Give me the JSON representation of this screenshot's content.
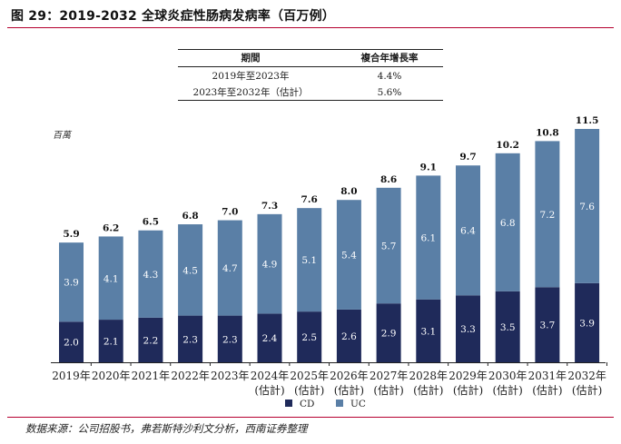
{
  "header": {
    "title": "图 29：2019-2032 全球炎症性肠病发病率（百万例）"
  },
  "cagr_table": {
    "headers": [
      "期間",
      "複合年增長率"
    ],
    "rows": [
      [
        "2019年至2023年",
        "4.4%"
      ],
      [
        "2023年至2032年（估計）",
        "5.6%"
      ]
    ]
  },
  "chart_data": {
    "type": "bar",
    "stacked": true,
    "title": "2019-2032 全球炎症性肠病发病率（百万例）",
    "ylabel": "百萬",
    "categories": [
      "2019年",
      "2020年",
      "2021年",
      "2022年",
      "2023年",
      "2024年\n(估計)",
      "2025年\n(估計)",
      "2026年\n(估計)",
      "2027年\n(估計)",
      "2028年\n(估計)",
      "2029年\n(估計)",
      "2030年\n(估計)",
      "2031年\n(估計)",
      "2032年\n(估計)"
    ],
    "series": [
      {
        "name": "CD",
        "color": "#1f2a5a",
        "values": [
          2.0,
          2.1,
          2.2,
          2.3,
          2.3,
          2.4,
          2.5,
          2.6,
          2.9,
          3.1,
          3.3,
          3.5,
          3.7,
          3.9
        ]
      },
      {
        "name": "UC",
        "color": "#5a7fa6",
        "values": [
          3.9,
          4.1,
          4.3,
          4.5,
          4.7,
          4.9,
          5.1,
          5.4,
          5.7,
          6.1,
          6.4,
          6.8,
          7.2,
          7.6
        ]
      }
    ],
    "totals": [
      5.9,
      6.2,
      6.5,
      6.8,
      7.0,
      7.3,
      7.6,
      8.0,
      8.6,
      9.1,
      9.7,
      10.2,
      10.8,
      11.5
    ],
    "ylim": [
      0,
      11.5
    ],
    "legend": {
      "position": "bottom-center",
      "items": [
        "CD",
        "UC"
      ]
    },
    "grid": false
  },
  "footer": {
    "source": "数据来源：公司招股书，弗若斯特沙利文分析，西南证券整理"
  }
}
